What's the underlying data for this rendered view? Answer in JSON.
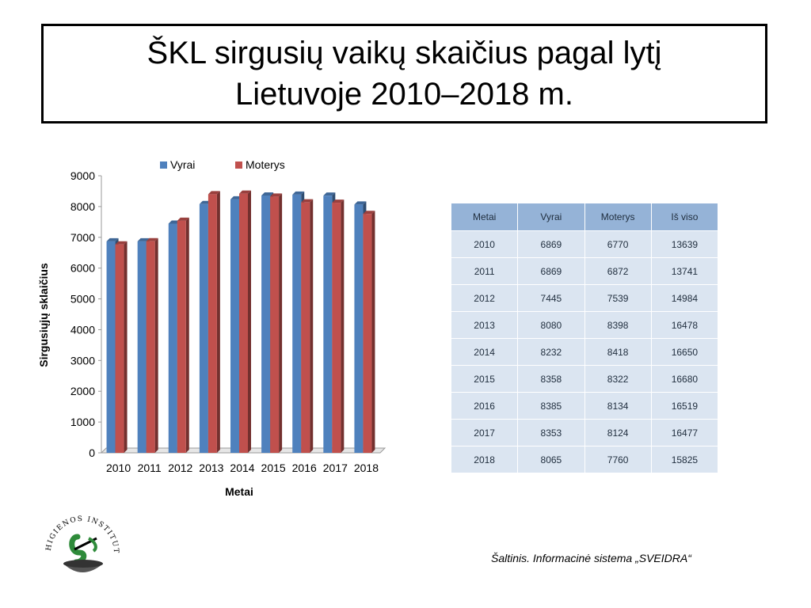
{
  "title": "ŠKL sirgusių vaikų skaičius pagal lytį\nLietuvoje 2010–2018 m.",
  "chart_data": {
    "type": "bar",
    "categories": [
      "2010",
      "2011",
      "2012",
      "2013",
      "2014",
      "2015",
      "2016",
      "2017",
      "2018"
    ],
    "series": [
      {
        "name": "Vyrai",
        "color": "#4f81bd",
        "values": [
          6869,
          6869,
          7445,
          8080,
          8232,
          8358,
          8385,
          8353,
          8065
        ]
      },
      {
        "name": "Moterys",
        "color": "#c0504d",
        "values": [
          6770,
          6872,
          7539,
          8398,
          8418,
          8322,
          8134,
          8124,
          7760
        ]
      }
    ],
    "xlabel": "Metai",
    "ylabel": "Sirgusiųjų sklaičius",
    "ylim": [
      0,
      9000
    ],
    "yticks": [
      0,
      1000,
      2000,
      3000,
      4000,
      5000,
      6000,
      7000,
      8000,
      9000
    ],
    "legend": "top"
  },
  "table": {
    "headers": [
      "Metai",
      "Vyrai",
      "Moterys",
      "Iš viso"
    ],
    "rows": [
      [
        "2010",
        "6869",
        "6770",
        "13639"
      ],
      [
        "2011",
        "6869",
        "6872",
        "13741"
      ],
      [
        "2012",
        "7445",
        "7539",
        "14984"
      ],
      [
        "2013",
        "8080",
        "8398",
        "16478"
      ],
      [
        "2014",
        "8232",
        "8418",
        "16650"
      ],
      [
        "2015",
        "8358",
        "8322",
        "16680"
      ],
      [
        "2016",
        "8385",
        "8134",
        "16519"
      ],
      [
        "2017",
        "8353",
        "8124",
        "16477"
      ],
      [
        "2018",
        "8065",
        "7760",
        "15825"
      ]
    ]
  },
  "source": "Šaltinis. Informacinė sistema „SVEIDRA“",
  "logo": {
    "text": "HIGIENOS INSTITUTAS",
    "icon": "higienos-institutas-logo"
  }
}
